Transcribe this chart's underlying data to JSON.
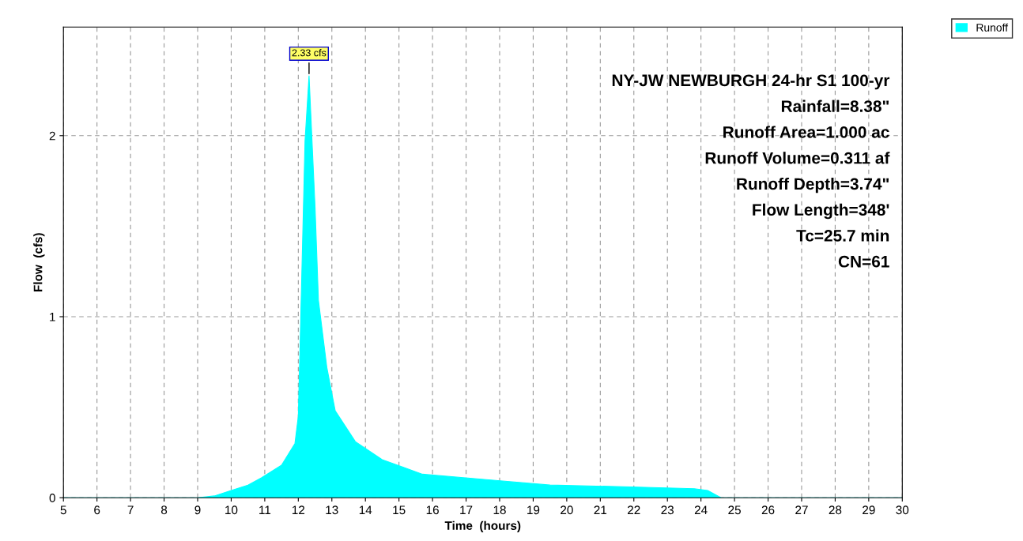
{
  "chart_data": {
    "type": "area",
    "xlabel": "Time  (hours)",
    "ylabel": "Flow  (cfs)",
    "x": [
      5,
      9,
      9.5,
      10,
      10.5,
      10.9,
      11.5,
      11.9,
      12.0,
      12.1,
      12.2,
      12.32,
      12.5,
      12.6,
      12.85,
      13.1,
      13.7,
      14.5,
      15.7,
      17.6,
      19.5,
      21.9,
      23.8,
      24.2,
      24.6,
      25,
      30
    ],
    "series": [
      {
        "name": "Runoff",
        "color": "#00ffff",
        "values": [
          0,
          0,
          0.01,
          0.04,
          0.07,
          0.11,
          0.18,
          0.3,
          0.45,
          1.2,
          1.97,
          2.33,
          1.6,
          1.09,
          0.72,
          0.48,
          0.31,
          0.21,
          0.13,
          0.1,
          0.07,
          0.06,
          0.05,
          0.04,
          0,
          0,
          0
        ]
      }
    ],
    "xlim": [
      5,
      30
    ],
    "ylim": [
      0,
      2.6
    ],
    "xticks": [
      5,
      6,
      7,
      8,
      9,
      10,
      11,
      12,
      13,
      14,
      15,
      16,
      17,
      18,
      19,
      20,
      21,
      22,
      23,
      24,
      25,
      26,
      27,
      28,
      29,
      30
    ],
    "yticks": [
      0,
      1,
      2
    ],
    "grid": true,
    "legend": "top right",
    "annotations": [
      {
        "text": "2.33 cfs",
        "x": 12.32,
        "y": 2.33
      },
      "NY-JW NEWBURGH 24-hr S1 100-yr",
      "Rainfall=8.38\"",
      "Runoff Area=1.000 ac",
      "Runoff Volume=0.311 af",
      "Runoff Depth=3.74\"",
      "Flow Length=348'",
      "Tc=25.7 min",
      "CN=61"
    ]
  }
}
